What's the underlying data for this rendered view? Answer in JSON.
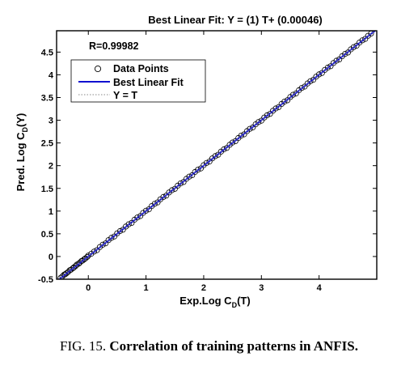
{
  "chart_data": {
    "type": "scatter",
    "title": "Best Linear Fit: Y = (1) T+ (0.00046)",
    "xlabel": "Exp.Log C_D(T)",
    "ylabel": "Pred. Log C_D(Y)",
    "xlim": [
      -0.55,
      5.0
    ],
    "ylim": [
      -0.5,
      4.97
    ],
    "x_ticks": [
      "0",
      "1",
      "2",
      "3",
      "4"
    ],
    "y_ticks": [
      "-0.5",
      "0",
      "0.5",
      "1",
      "1.5",
      "2",
      "2.5",
      "3",
      "3.5",
      "4",
      "4.5"
    ],
    "annotation": "R=0.99982",
    "legend": {
      "placement": "top-left",
      "entries": [
        "Data Points",
        "Best Linear Fit",
        "Y = T"
      ]
    },
    "fit": {
      "slope": 1,
      "intercept": 0.00046
    },
    "series": [
      {
        "name": "Data Points",
        "marker": "circle-open",
        "color": "#000000",
        "x_range": [
          -0.5,
          4.92
        ],
        "points": [
          [
            -0.48,
            -0.47
          ],
          [
            -0.45,
            -0.44
          ],
          [
            -0.42,
            -0.4
          ],
          [
            -0.4,
            -0.39
          ],
          [
            -0.38,
            -0.37
          ],
          [
            -0.35,
            -0.34
          ],
          [
            -0.32,
            -0.3
          ],
          [
            -0.3,
            -0.29
          ],
          [
            -0.27,
            -0.26
          ],
          [
            -0.25,
            -0.24
          ],
          [
            -0.22,
            -0.21
          ],
          [
            -0.2,
            -0.18
          ],
          [
            -0.17,
            -0.16
          ],
          [
            -0.15,
            -0.14
          ],
          [
            -0.12,
            -0.1
          ],
          [
            -0.1,
            -0.09
          ],
          [
            -0.07,
            -0.06
          ],
          [
            -0.05,
            -0.04
          ],
          [
            -0.02,
            -0.01
          ],
          [
            0.0,
            0.02
          ],
          [
            0.05,
            0.06
          ],
          [
            0.1,
            0.11
          ],
          [
            0.15,
            0.14
          ],
          [
            0.2,
            0.21
          ],
          [
            0.25,
            0.26
          ],
          [
            0.3,
            0.29
          ],
          [
            0.35,
            0.36
          ],
          [
            0.4,
            0.41
          ],
          [
            0.45,
            0.44
          ],
          [
            0.5,
            0.51
          ],
          [
            0.55,
            0.56
          ],
          [
            0.6,
            0.59
          ],
          [
            0.65,
            0.66
          ],
          [
            0.7,
            0.71
          ],
          [
            0.75,
            0.74
          ],
          [
            0.8,
            0.81
          ],
          [
            0.85,
            0.86
          ],
          [
            0.9,
            0.89
          ],
          [
            0.95,
            0.96
          ],
          [
            1.0,
            1.01
          ],
          [
            1.05,
            1.04
          ],
          [
            1.1,
            1.11
          ],
          [
            1.15,
            1.16
          ],
          [
            1.2,
            1.19
          ],
          [
            1.25,
            1.26
          ],
          [
            1.3,
            1.31
          ],
          [
            1.35,
            1.34
          ],
          [
            1.4,
            1.41
          ],
          [
            1.45,
            1.46
          ],
          [
            1.5,
            1.49
          ],
          [
            1.55,
            1.56
          ],
          [
            1.6,
            1.61
          ],
          [
            1.65,
            1.64
          ],
          [
            1.7,
            1.71
          ],
          [
            1.75,
            1.76
          ],
          [
            1.8,
            1.79
          ],
          [
            1.85,
            1.86
          ],
          [
            1.9,
            1.91
          ],
          [
            1.95,
            1.94
          ],
          [
            2.0,
            2.01
          ],
          [
            2.05,
            2.06
          ],
          [
            2.1,
            2.09
          ],
          [
            2.15,
            2.16
          ],
          [
            2.2,
            2.21
          ],
          [
            2.25,
            2.24
          ],
          [
            2.3,
            2.31
          ],
          [
            2.35,
            2.36
          ],
          [
            2.4,
            2.39
          ],
          [
            2.45,
            2.46
          ],
          [
            2.5,
            2.51
          ],
          [
            2.55,
            2.54
          ],
          [
            2.6,
            2.61
          ],
          [
            2.65,
            2.66
          ],
          [
            2.7,
            2.69
          ],
          [
            2.75,
            2.76
          ],
          [
            2.8,
            2.81
          ],
          [
            2.85,
            2.84
          ],
          [
            2.9,
            2.91
          ],
          [
            2.95,
            2.96
          ],
          [
            3.0,
            2.99
          ],
          [
            3.05,
            3.06
          ],
          [
            3.1,
            3.11
          ],
          [
            3.15,
            3.14
          ],
          [
            3.2,
            3.21
          ],
          [
            3.25,
            3.26
          ],
          [
            3.3,
            3.29
          ],
          [
            3.35,
            3.36
          ],
          [
            3.4,
            3.41
          ],
          [
            3.45,
            3.44
          ],
          [
            3.5,
            3.51
          ],
          [
            3.55,
            3.56
          ],
          [
            3.6,
            3.59
          ],
          [
            3.65,
            3.66
          ],
          [
            3.7,
            3.71
          ],
          [
            3.75,
            3.74
          ],
          [
            3.8,
            3.81
          ],
          [
            3.85,
            3.86
          ],
          [
            3.9,
            3.89
          ],
          [
            3.95,
            3.96
          ],
          [
            4.0,
            4.01
          ],
          [
            4.05,
            4.04
          ],
          [
            4.1,
            4.11
          ],
          [
            4.15,
            4.16
          ],
          [
            4.2,
            4.19
          ],
          [
            4.25,
            4.26
          ],
          [
            4.3,
            4.31
          ],
          [
            4.35,
            4.34
          ],
          [
            4.4,
            4.41
          ],
          [
            4.45,
            4.46
          ],
          [
            4.5,
            4.49
          ],
          [
            4.55,
            4.56
          ],
          [
            4.6,
            4.61
          ],
          [
            4.65,
            4.64
          ],
          [
            4.7,
            4.71
          ],
          [
            4.75,
            4.76
          ],
          [
            4.8,
            4.79
          ],
          [
            4.85,
            4.86
          ],
          [
            4.9,
            4.91
          ]
        ]
      },
      {
        "name": "Best Linear Fit",
        "type": "line",
        "color": "#1010d0",
        "x": [
          -0.55,
          5.0
        ],
        "y": [
          -0.54954,
          5.00046
        ]
      },
      {
        "name": "Y = T",
        "type": "line",
        "style": "dotted",
        "color": "#888888",
        "x": [
          -0.55,
          5.0
        ],
        "y": [
          -0.55,
          5.0
        ]
      }
    ]
  },
  "caption": {
    "prefix": "FIG. 15. ",
    "text": "Correlation of training patterns in ANFIS."
  }
}
